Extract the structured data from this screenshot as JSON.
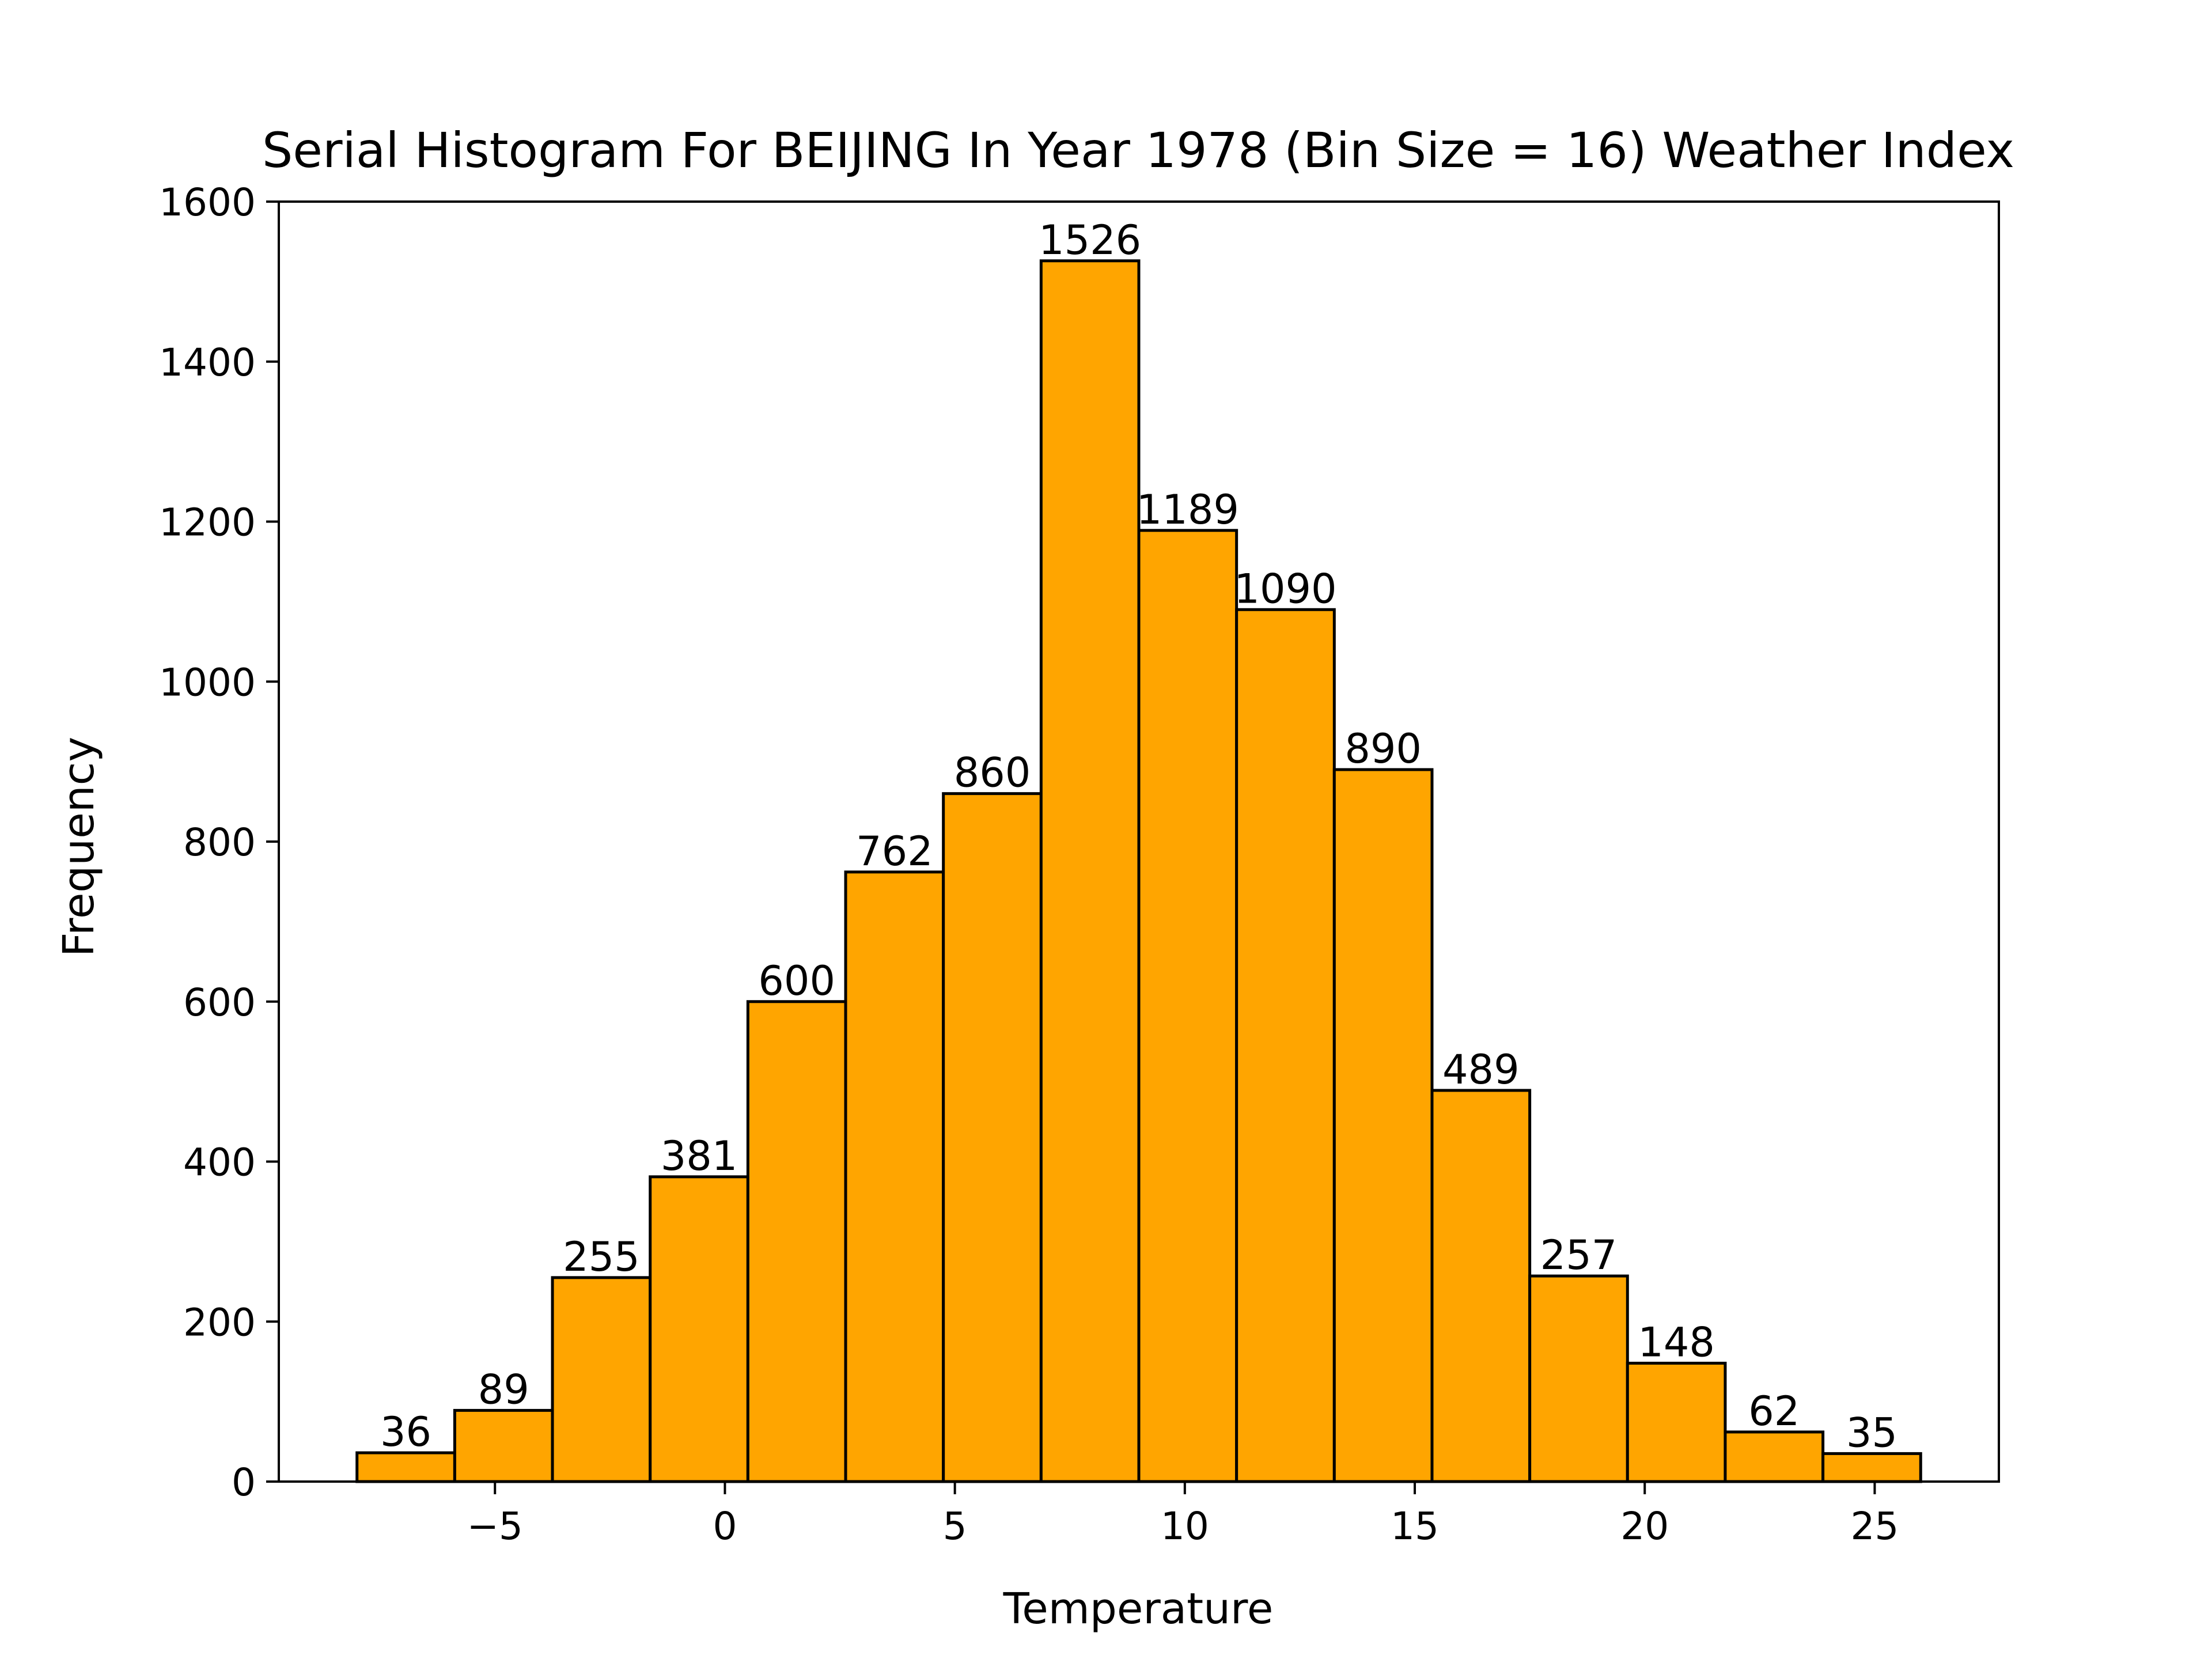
{
  "chart_data": {
    "type": "bar",
    "title": "Serial Histogram For BEIJING In Year 1978 (Bin Size = 16) Weather Index",
    "xlabel": "Temperature",
    "ylabel": "Frequency",
    "bin_edges": [
      -8.0,
      -5.875,
      -3.75,
      -1.625,
      0.5,
      2.625,
      4.75,
      6.875,
      9.0,
      11.125,
      13.25,
      15.375,
      17.5,
      19.625,
      21.75,
      23.875,
      26.0
    ],
    "values": [
      36,
      89,
      255,
      381,
      600,
      762,
      860,
      1526,
      1189,
      1090,
      890,
      489,
      257,
      148,
      62,
      35
    ],
    "xlim": [
      -9.7,
      27.7
    ],
    "ylim": [
      0,
      1600
    ],
    "xticks": [
      -5,
      0,
      5,
      10,
      15,
      20,
      25
    ],
    "xtick_labels": [
      "−5",
      "0",
      "5",
      "10",
      "15",
      "20",
      "25"
    ],
    "yticks": [
      0,
      200,
      400,
      600,
      800,
      1000,
      1200,
      1400,
      1600
    ],
    "ytick_labels": [
      "0",
      "200",
      "400",
      "600",
      "800",
      "1000",
      "1200",
      "1400",
      "1600"
    ],
    "bar_color": "#FFA500",
    "edge_color": "#000000",
    "grid": false,
    "legend": "none"
  }
}
